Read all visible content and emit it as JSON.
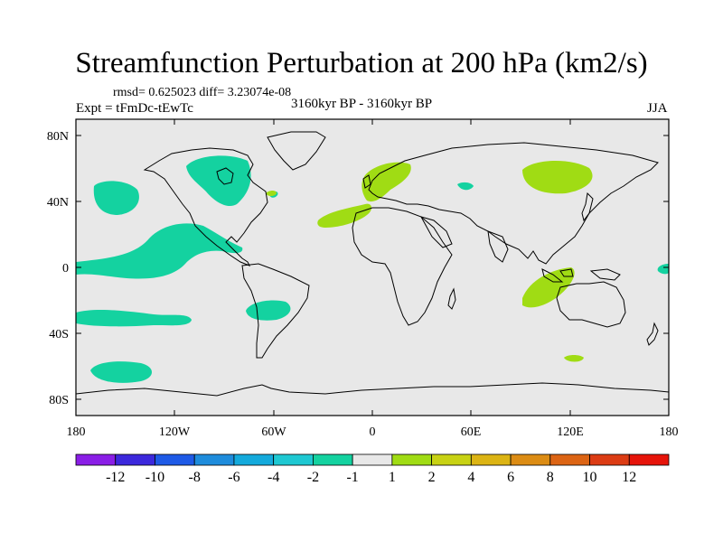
{
  "title": "Streamfunction Perturbation at 200 hPa (km2/s)",
  "stats": "rmsd= 0.625023 diff= 3.23074e-08",
  "period": "3160kyr BP - 3160kyr BP",
  "experiment": "Expt = tFmDc-tEwTc",
  "season": "JJA",
  "lat_ticks": [
    "80N",
    "40N",
    "0",
    "40S",
    "80S"
  ],
  "lon_ticks": [
    "180",
    "120W",
    "60W",
    "0",
    "60E",
    "120E",
    "180"
  ],
  "colorbar": {
    "labels": [
      "-12",
      "-10",
      "-8",
      "-6",
      "-4",
      "-2",
      "-1",
      "1",
      "2",
      "4",
      "6",
      "8",
      "10",
      "12"
    ],
    "colors": [
      "#8a1ee6",
      "#3c28dc",
      "#1e5ae6",
      "#1e8cdc",
      "#14aadc",
      "#1ec8d2",
      "#14d2a0",
      "#e8e8e8",
      "#a0dc14",
      "#c8d214",
      "#dcb414",
      "#dc8c14",
      "#dc6414",
      "#dc3c14",
      "#e6140a"
    ]
  },
  "colors": {
    "ocean": "#e8e8e8",
    "negative_region": "#14d2a0",
    "positive_region": "#a0dc14"
  }
}
